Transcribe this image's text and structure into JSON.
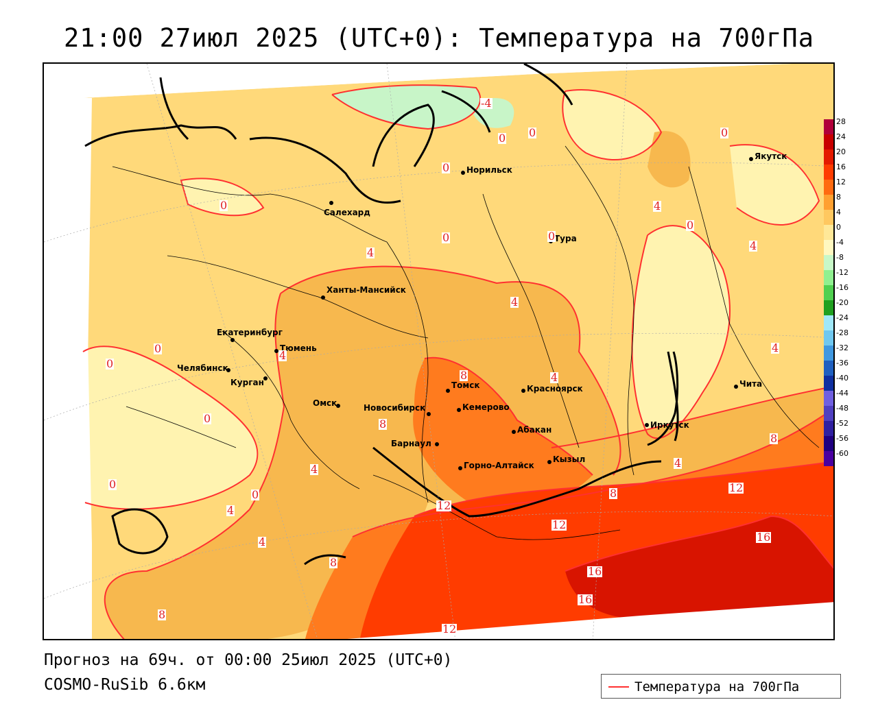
{
  "title": "21:00 27июл 2025 (UTC+0): Температура на 700гПа",
  "footer": {
    "forecast": "Прогноз на 69ч. от 00:00 25июл 2025 (UTC+0)",
    "model": "COSMO-RuSib 6.6км"
  },
  "legend": {
    "label": "Температура на 700гПа",
    "color": "#ff3030"
  },
  "colorbar": {
    "ticks": [
      "28",
      "24",
      "20",
      "16",
      "12",
      "8",
      "4",
      "0",
      "-4",
      "-8",
      "-12",
      "-16",
      "-20",
      "-24",
      "-28",
      "-32",
      "-36",
      "-40",
      "-44",
      "-48",
      "-52",
      "-56",
      "-60"
    ],
    "colors": [
      "#b0003a",
      "#c80000",
      "#e41a00",
      "#ff3c00",
      "#ff6a10",
      "#ffa030",
      "#ffc860",
      "#ffe898",
      "#fff8c0",
      "#c8f8c8",
      "#90f090",
      "#50d050",
      "#20a020",
      "#a0e8f8",
      "#70c8f0",
      "#4098e0",
      "#2060c0",
      "#1030a0",
      "#7060e0",
      "#5040c0",
      "#3020a0",
      "#200080",
      "#4a00a0"
    ]
  },
  "cities": [
    {
      "name": "Якутск"
    },
    {
      "name": "Норильск"
    },
    {
      "name": "Салехард"
    },
    {
      "name": "Тура"
    },
    {
      "name": "Ханты-Мансийск"
    },
    {
      "name": "Екатеринбург"
    },
    {
      "name": "Тюмень"
    },
    {
      "name": "Челябинск"
    },
    {
      "name": "Курган"
    },
    {
      "name": "Омск"
    },
    {
      "name": "Новосибирск"
    },
    {
      "name": "Томск"
    },
    {
      "name": "Кемерово"
    },
    {
      "name": "Красноярск"
    },
    {
      "name": "Барнаул"
    },
    {
      "name": "Абакан"
    },
    {
      "name": "Горно-Алтайск"
    },
    {
      "name": "Кызыл"
    },
    {
      "name": "Иркутск"
    },
    {
      "name": "Чита"
    }
  ],
  "contour_labels": [
    "-4",
    "0",
    "0",
    "0",
    "0",
    "0",
    "0",
    "0",
    "0",
    "0",
    "0",
    "0",
    "0",
    "0",
    "4",
    "4",
    "4",
    "4",
    "4",
    "4",
    "4",
    "4",
    "4",
    "4",
    "4",
    "8",
    "8",
    "8",
    "8",
    "8",
    "8",
    "12",
    "12",
    "12",
    "12",
    "16",
    "16",
    "16"
  ]
}
